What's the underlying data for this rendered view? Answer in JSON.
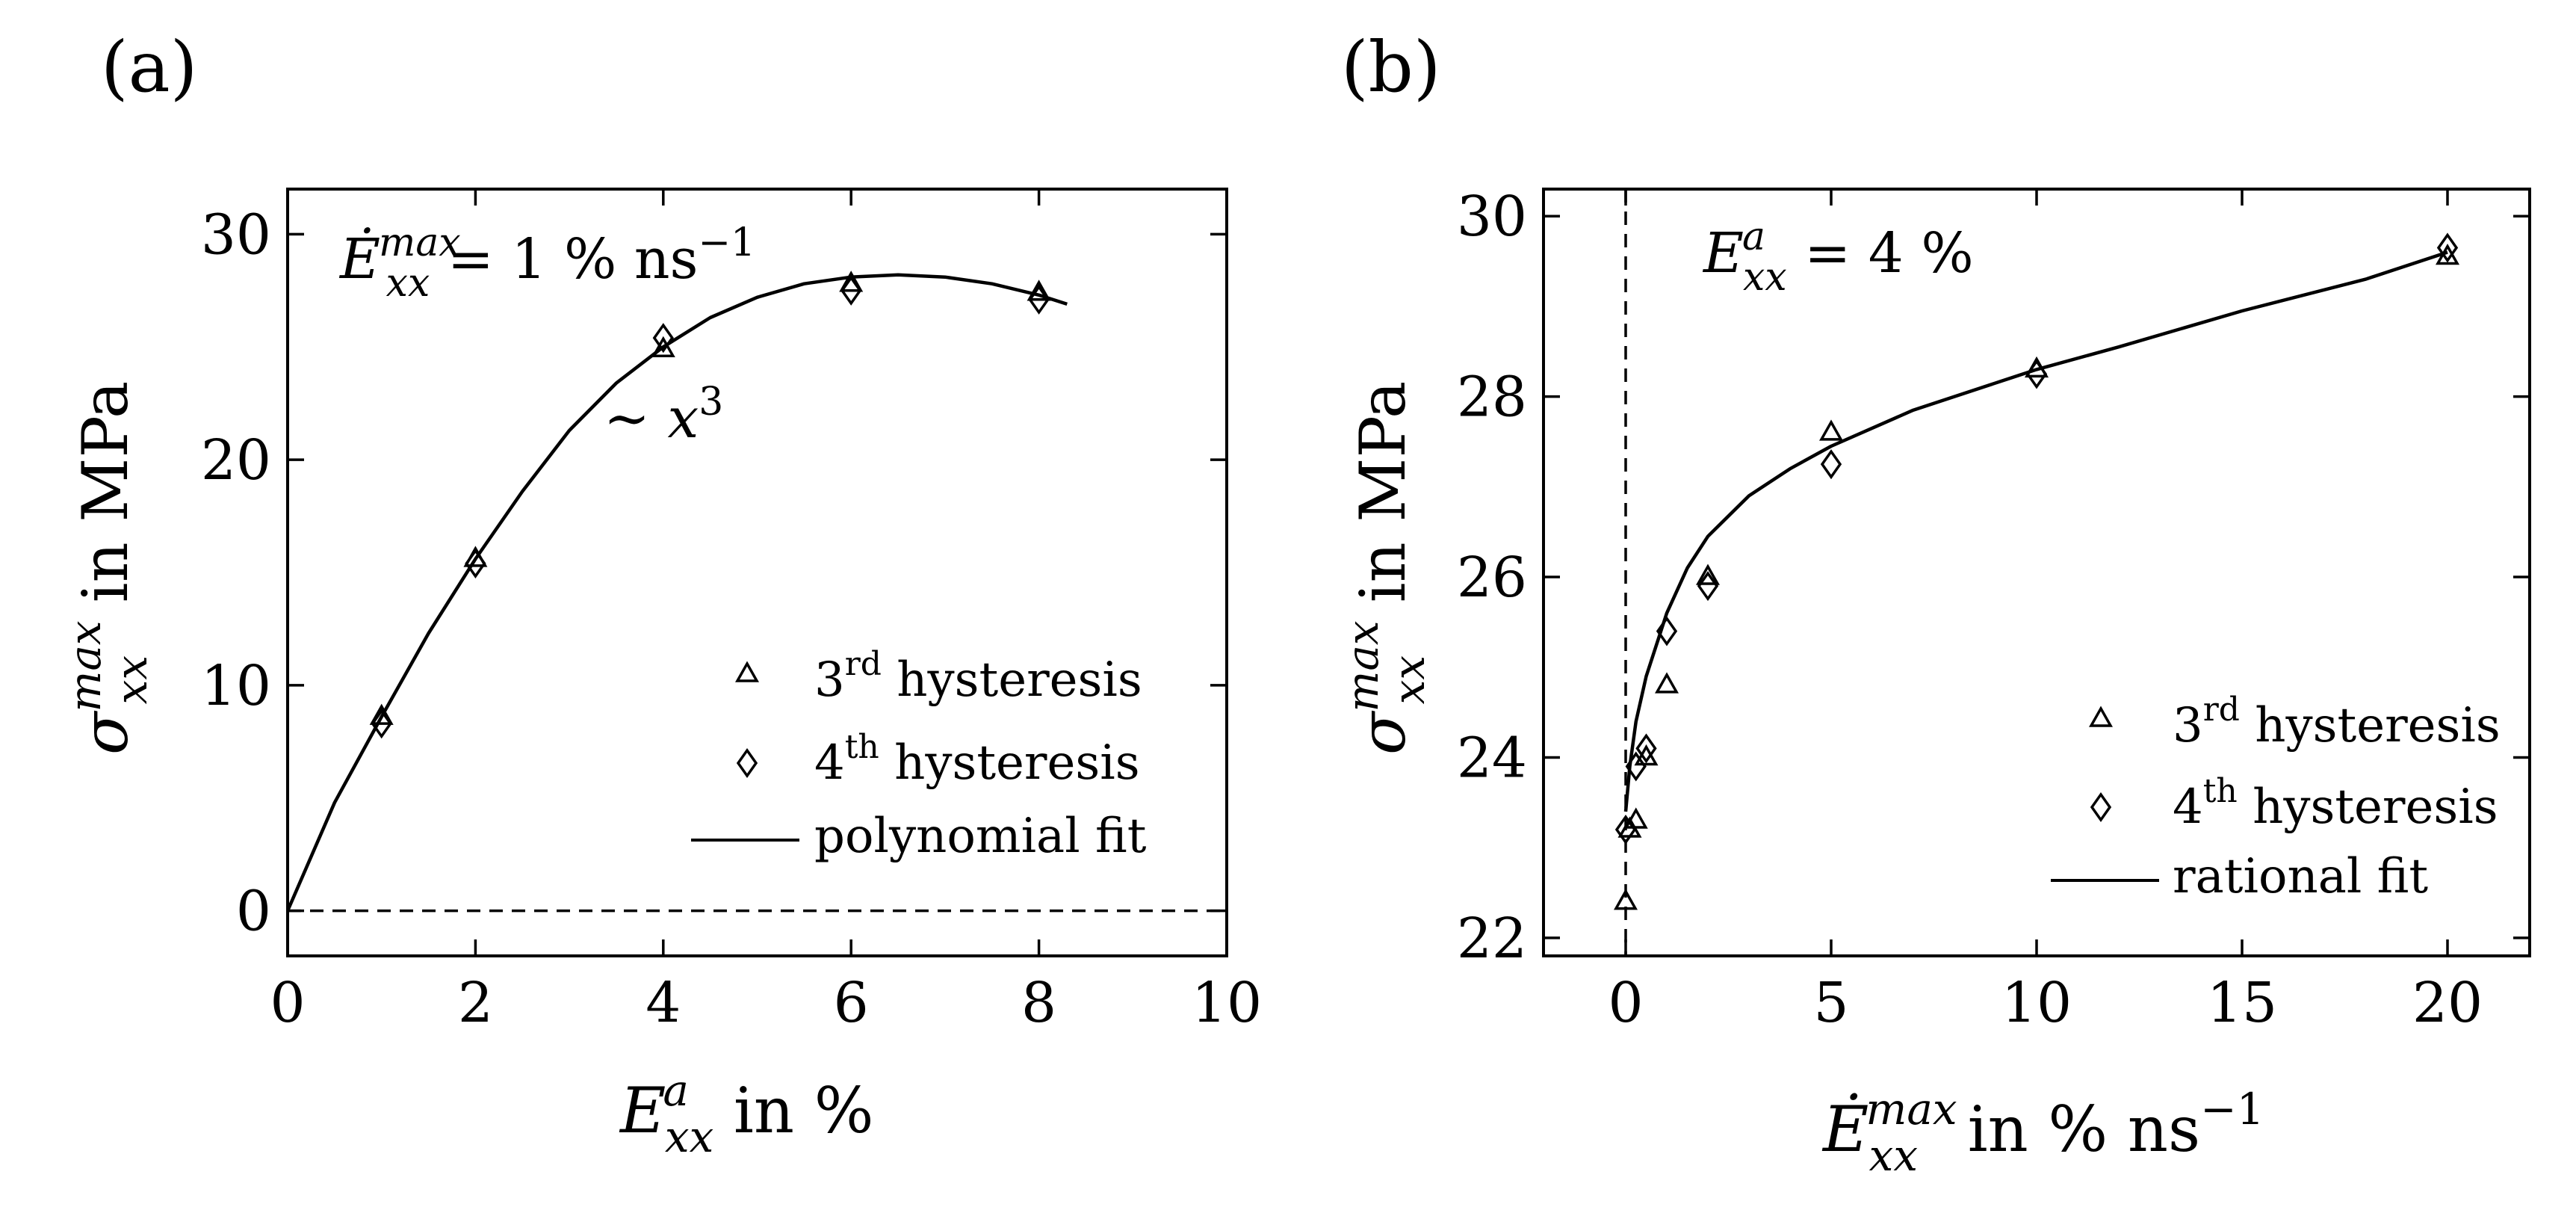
{
  "panels": [
    {
      "id": "a",
      "panel_label": "(a)",
      "annotation": {
        "lhs": "Ė",
        "sub": "xx",
        "sup": "max",
        "rhs": " = 1 % ns",
        "rhs_sup": "−1"
      },
      "curve_note": "∼ x",
      "curve_note_sup": "3",
      "legend": [
        {
          "marker": "triangle",
          "base": "3",
          "sup": "rd",
          "text": " hysteresis"
        },
        {
          "marker": "diamond",
          "base": "4",
          "sup": "th",
          "text": " hysteresis"
        },
        {
          "marker": "line",
          "text": "polynomial fit"
        }
      ],
      "xlabel": {
        "sym": "E",
        "sub": "xx",
        "sup": "a",
        "rest": " in %"
      },
      "ylabel": {
        "sym": "σ",
        "sub": "xx",
        "sup": "max",
        "rest": " in MPa"
      }
    },
    {
      "id": "b",
      "panel_label": "(b)",
      "annotation": {
        "lhs": "E",
        "sub": "xx",
        "sup": "a",
        "rhs": " = 4 %",
        "rhs_sup": ""
      },
      "legend": [
        {
          "marker": "triangle",
          "base": "3",
          "sup": "rd",
          "text": " hysteresis"
        },
        {
          "marker": "diamond",
          "base": "4",
          "sup": "th",
          "text": " hysteresis"
        },
        {
          "marker": "line",
          "text": "rational fit"
        }
      ],
      "xlabel": {
        "sym": "Ė",
        "sub": "xx",
        "sup": "max",
        "rest": " in % ns",
        "rest_sup": "−1"
      },
      "ylabel": {
        "sym": "σ",
        "sub": "xx",
        "sup": "max",
        "rest": " in MPa"
      }
    }
  ],
  "chart_data": [
    {
      "type": "scatter",
      "title": "",
      "xlim": [
        0,
        10
      ],
      "ylim": [
        -2,
        32
      ],
      "xticks": [
        0,
        2,
        4,
        6,
        8,
        10
      ],
      "yticks": [
        0,
        10,
        20,
        30
      ],
      "reference_line": {
        "orientation": "horizontal",
        "value": 0,
        "style": "dashed"
      },
      "series": [
        {
          "name": "3rd hysteresis",
          "marker": "triangle",
          "points": [
            [
              1,
              8.6
            ],
            [
              2,
              15.6
            ],
            [
              4,
              24.9
            ],
            [
              6,
              27.8
            ],
            [
              8,
              27.4
            ]
          ]
        },
        {
          "name": "4th hysteresis",
          "marker": "diamond",
          "points": [
            [
              1,
              8.3
            ],
            [
              2,
              15.4
            ],
            [
              4,
              25.4
            ],
            [
              6,
              27.5
            ],
            [
              8,
              27.1
            ]
          ]
        },
        {
          "name": "polynomial fit",
          "marker": "line",
          "points": [
            [
              0,
              0
            ],
            [
              0.5,
              4.8
            ],
            [
              1,
              8.6
            ],
            [
              1.5,
              12.3
            ],
            [
              2,
              15.6
            ],
            [
              2.5,
              18.6
            ],
            [
              3,
              21.3
            ],
            [
              3.5,
              23.4
            ],
            [
              4,
              25.0
            ],
            [
              4.5,
              26.3
            ],
            [
              5,
              27.2
            ],
            [
              5.5,
              27.8
            ],
            [
              6,
              28.1
            ],
            [
              6.5,
              28.2
            ],
            [
              7,
              28.1
            ],
            [
              7.5,
              27.8
            ],
            [
              8,
              27.3
            ],
            [
              8.3,
              26.9
            ]
          ]
        }
      ]
    },
    {
      "type": "scatter",
      "title": "",
      "xlim": [
        -2,
        22
      ],
      "ylim": [
        21.8,
        30.3
      ],
      "xticks": [
        0,
        5,
        10,
        15,
        20
      ],
      "yticks": [
        22,
        24,
        26,
        28,
        30
      ],
      "reference_line": {
        "orientation": "vertical",
        "value": 0,
        "style": "dashed"
      },
      "series": [
        {
          "name": "3rd hysteresis",
          "marker": "triangle",
          "points": [
            [
              0,
              22.4
            ],
            [
              0.1,
              23.2
            ],
            [
              0.25,
              23.3
            ],
            [
              0.5,
              24.0
            ],
            [
              1,
              24.8
            ],
            [
              2,
              26.0
            ],
            [
              5,
              27.6
            ],
            [
              10,
              28.3
            ],
            [
              20,
              29.55
            ]
          ]
        },
        {
          "name": "4th hysteresis",
          "marker": "diamond",
          "points": [
            [
              0,
              23.2
            ],
            [
              0.25,
              23.9
            ],
            [
              0.5,
              24.1
            ],
            [
              1,
              25.4
            ],
            [
              2,
              25.9
            ],
            [
              5,
              27.25
            ],
            [
              10,
              28.25
            ],
            [
              20,
              29.65
            ]
          ]
        },
        {
          "name": "rational fit",
          "marker": "line",
          "points": [
            [
              0,
              23.4
            ],
            [
              0.1,
              23.9
            ],
            [
              0.25,
              24.4
            ],
            [
              0.5,
              24.9
            ],
            [
              1,
              25.6
            ],
            [
              1.5,
              26.1
            ],
            [
              2,
              26.45
            ],
            [
              3,
              26.9
            ],
            [
              4,
              27.2
            ],
            [
              5,
              27.45
            ],
            [
              7,
              27.85
            ],
            [
              10,
              28.3
            ],
            [
              12,
              28.55
            ],
            [
              15,
              28.95
            ],
            [
              18,
              29.3
            ],
            [
              20,
              29.6
            ]
          ]
        }
      ]
    }
  ]
}
